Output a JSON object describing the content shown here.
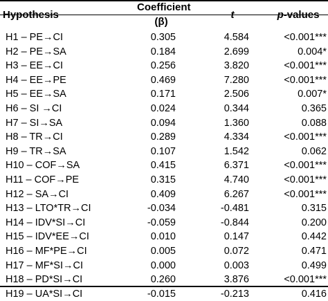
{
  "headers": {
    "hypothesis": "Hypothesis",
    "coefficient": "Coefficient (β)",
    "t": "t",
    "p_italic": "p",
    "p_rest": "-values"
  },
  "rows": [
    {
      "hypothesis": "H1 – PE→CI",
      "coef": "0.305",
      "t": "4.584",
      "p": "<0.001***"
    },
    {
      "hypothesis": "H2 – PE→SA",
      "coef": "0.184",
      "t": "2.699",
      "p": "0.004*"
    },
    {
      "hypothesis": "H3 – EE→CI",
      "coef": "0.256",
      "t": "3.820",
      "p": "<0.001***"
    },
    {
      "hypothesis": "H4 – EE→PE",
      "coef": "0.469",
      "t": "7.280",
      "p": "<0.001***"
    },
    {
      "hypothesis": "H5 – EE→SA",
      "coef": "0.171",
      "t": "2.506",
      "p": "0.007*"
    },
    {
      "hypothesis": "H6 – SI →CI",
      "coef": "0.024",
      "t": "0.344",
      "p": "0.365"
    },
    {
      "hypothesis": "H7 – SI→SA",
      "coef": "0.094",
      "t": "1.360",
      "p": "0.088"
    },
    {
      "hypothesis": "H8 – TR→CI",
      "coef": "0.289",
      "t": "4.334",
      "p": "<0.001***"
    },
    {
      "hypothesis": "H9 – TR→SA",
      "coef": "0.107",
      "t": "1.542",
      "p": "0.062"
    },
    {
      "hypothesis": "H10 – COF→SA",
      "coef": "0.415",
      "t": "6.371",
      "p": "<0.001***"
    },
    {
      "hypothesis": "H11 – COF→PE",
      "coef": "0.315",
      "t": "4.740",
      "p": "<0.001***"
    },
    {
      "hypothesis": "H12 – SA→CI",
      "coef": "0.409",
      "t": "6.267",
      "p": "<0.001***"
    },
    {
      "hypothesis": "H13 – LTO*TR→CI",
      "coef": "-0.034",
      "t": "-0.481",
      "p": "0.315"
    },
    {
      "hypothesis": "H14 – IDV*SI→CI",
      "coef": "-0.059",
      "t": "-0.844",
      "p": "0.200"
    },
    {
      "hypothesis": "H15 – IDV*EE→CI",
      "coef": "0.010",
      "t": "0.147",
      "p": "0.442"
    },
    {
      "hypothesis": "H16 – MF*PE→CI",
      "coef": "0.005",
      "t": "0.072",
      "p": "0.471"
    },
    {
      "hypothesis": "H17 – MF*SI→CI",
      "coef": "0.000",
      "t": "0.003",
      "p": "0.499"
    },
    {
      "hypothesis": "H18 – PD*SI→CI",
      "coef": "0.260",
      "t": "3.876",
      "p": "<0.001***"
    },
    {
      "hypothesis": "H19 – UA*SI→CI",
      "coef": "-0.015",
      "t": "-0.213",
      "p": "0.416"
    }
  ]
}
